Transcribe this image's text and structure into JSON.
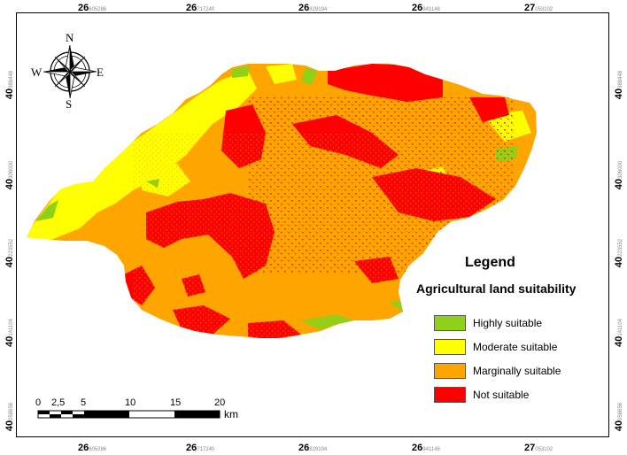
{
  "legend": {
    "title": "Legend",
    "subtitle": "Agricultural land suitability",
    "classes": [
      {
        "label": "Highly suitable",
        "color": "#8fd018"
      },
      {
        "label": "Moderate suitable",
        "color": "#ffff00"
      },
      {
        "label": "Marginally suitable",
        "color": "#ffa500"
      },
      {
        "label": "Not suitable",
        "color": "#ff0000"
      }
    ]
  },
  "graticule": {
    "top": [
      {
        "major": "26",
        "minor": "605286"
      },
      {
        "major": "26",
        "minor": "717240"
      },
      {
        "major": "26",
        "minor": "829194"
      },
      {
        "major": "26",
        "minor": "941148"
      },
      {
        "major": "27",
        "minor": "053102"
      }
    ],
    "bottom": [
      {
        "major": "26",
        "minor": "605286"
      },
      {
        "major": "26",
        "minor": "717240"
      },
      {
        "major": "26",
        "minor": "829194"
      },
      {
        "major": "26",
        "minor": "941148"
      },
      {
        "major": "27",
        "minor": "053102"
      }
    ],
    "left": [
      {
        "major": "40",
        "minor": "388448"
      },
      {
        "major": "40",
        "minor": "306000"
      },
      {
        "major": "40",
        "minor": "223552"
      },
      {
        "major": "40",
        "minor": "141104"
      },
      {
        "major": "40",
        "minor": "058656"
      }
    ],
    "right": [
      {
        "major": "40",
        "minor": "388448"
      },
      {
        "major": "40",
        "minor": "306000"
      },
      {
        "major": "40",
        "minor": "223552"
      },
      {
        "major": "40",
        "minor": "141104"
      },
      {
        "major": "40",
        "minor": "058656"
      }
    ]
  },
  "compass": {
    "n": "N",
    "s": "S",
    "e": "E",
    "w": "W",
    "icon": "compass-rose-icon"
  },
  "scale_bar": {
    "labels": [
      "0",
      "2,5",
      "5",
      "10",
      "15",
      "20"
    ],
    "unit": "km"
  }
}
